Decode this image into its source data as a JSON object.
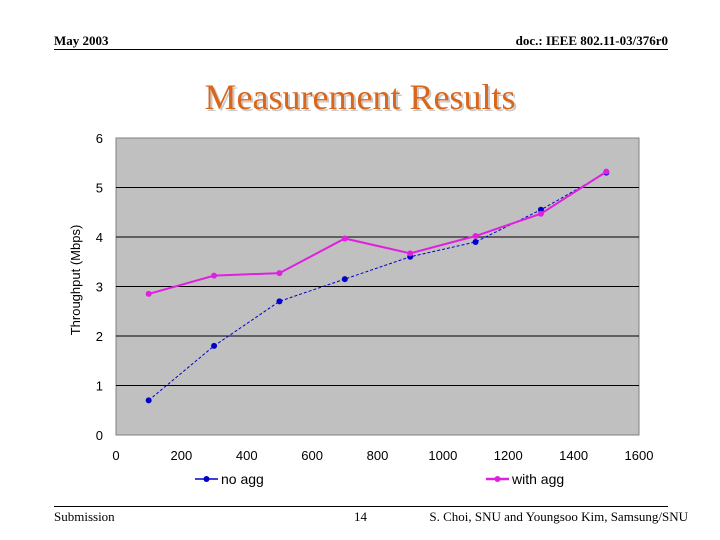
{
  "header": {
    "date": "May 2003",
    "doc": "doc.: IEEE 802.11-03/376r0"
  },
  "slide_title": "Measurement Results",
  "footer": {
    "left": "Submission",
    "page": "14",
    "right": "S. Choi, SNU and Youngsoo Kim, Samsung/SNU"
  },
  "colors": {
    "title": "#d9661a",
    "plot_bg": "#c0c0c0",
    "no_agg": "#0000cc",
    "with_agg": "#e020e0"
  },
  "chart_data": {
    "type": "line",
    "title": "",
    "xlabel": "",
    "ylabel": "Throughput (Mbps)",
    "xlim": [
      0,
      1600
    ],
    "ylim": [
      0,
      6
    ],
    "x_ticks": [
      0,
      200,
      400,
      600,
      800,
      1000,
      1200,
      1400,
      1600
    ],
    "y_ticks": [
      0,
      1,
      2,
      3,
      4,
      5,
      6
    ],
    "x": [
      100,
      300,
      500,
      700,
      900,
      1100,
      1300,
      1500
    ],
    "series": [
      {
        "name": "no agg",
        "values": [
          0.7,
          1.8,
          2.7,
          3.15,
          3.6,
          3.9,
          4.55,
          5.3
        ]
      },
      {
        "name": "with agg",
        "values": [
          2.85,
          3.22,
          3.27,
          3.97,
          3.67,
          4.02,
          4.47,
          5.32
        ]
      }
    ],
    "legend": "bottom"
  }
}
